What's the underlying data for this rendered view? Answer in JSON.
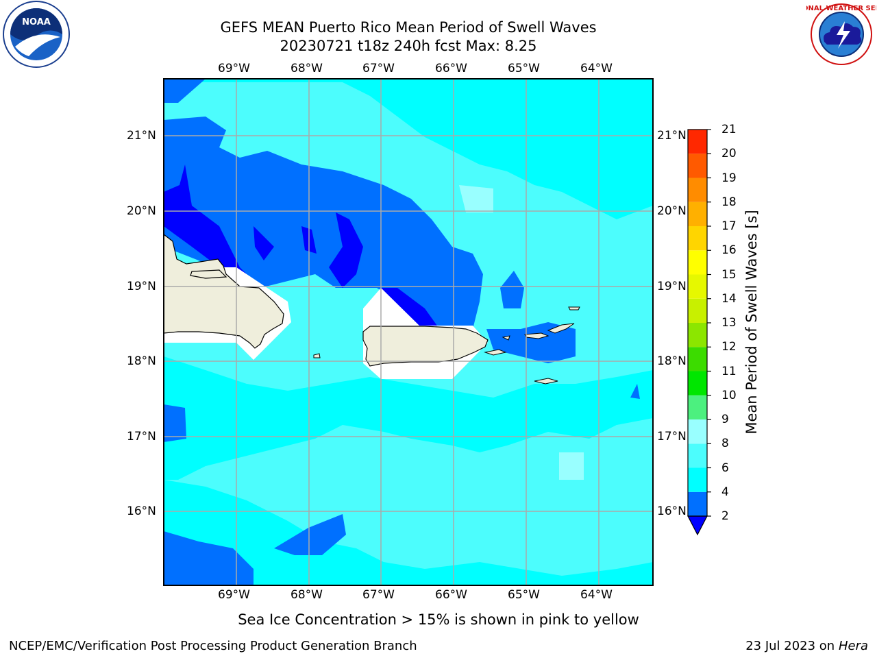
{
  "header": {
    "title_line1": "GEFS MEAN Puerto Rico Mean Period of Swell Waves",
    "title_line2": "20230721 t18z 240h fcst   Max: 8.25"
  },
  "logos": {
    "noaa_text": "NOAA",
    "nws_text": "NATIONAL WEATHER SERVICE"
  },
  "map": {
    "lon_labels": [
      "69°W",
      "68°W",
      "67°W",
      "66°W",
      "65°W",
      "64°W"
    ],
    "lat_labels": [
      "21°N",
      "20°N",
      "19°N",
      "18°N",
      "17°N",
      "16°N"
    ],
    "land_color": "#efeedc",
    "ocean_colors": {
      "blue": "#0000ff",
      "medium_blue": "#0070ff",
      "cyan": "#00ffff",
      "aqua": "#4cfdfd",
      "pale_aqua": "#99ffff"
    }
  },
  "colorbar": {
    "label": "Mean Period of Swell Waves [s]",
    "ticks": [
      "2",
      "4",
      "6",
      "8",
      "9",
      "10",
      "11",
      "12",
      "13",
      "14",
      "15",
      "16",
      "17",
      "18",
      "19",
      "20",
      "21"
    ],
    "colors": [
      "#0070ff",
      "#00ffff",
      "#4cfdfd",
      "#99ffff",
      "#4cf07f",
      "#00e600",
      "#3cdc00",
      "#8ce600",
      "#c8f000",
      "#e6f800",
      "#ffff00",
      "#ffd500",
      "#ffb000",
      "#ff8c00",
      "#ff5a00",
      "#ff2800"
    ],
    "under_color": "#0000ff"
  },
  "caption": "Sea Ice Concentration > 15% is shown in pink to yellow",
  "footer": {
    "left": "NCEP/EMC/Verification Post Processing Product Generation Branch",
    "right_prefix": "23 Jul 2023 on ",
    "right_host": "Hera"
  }
}
